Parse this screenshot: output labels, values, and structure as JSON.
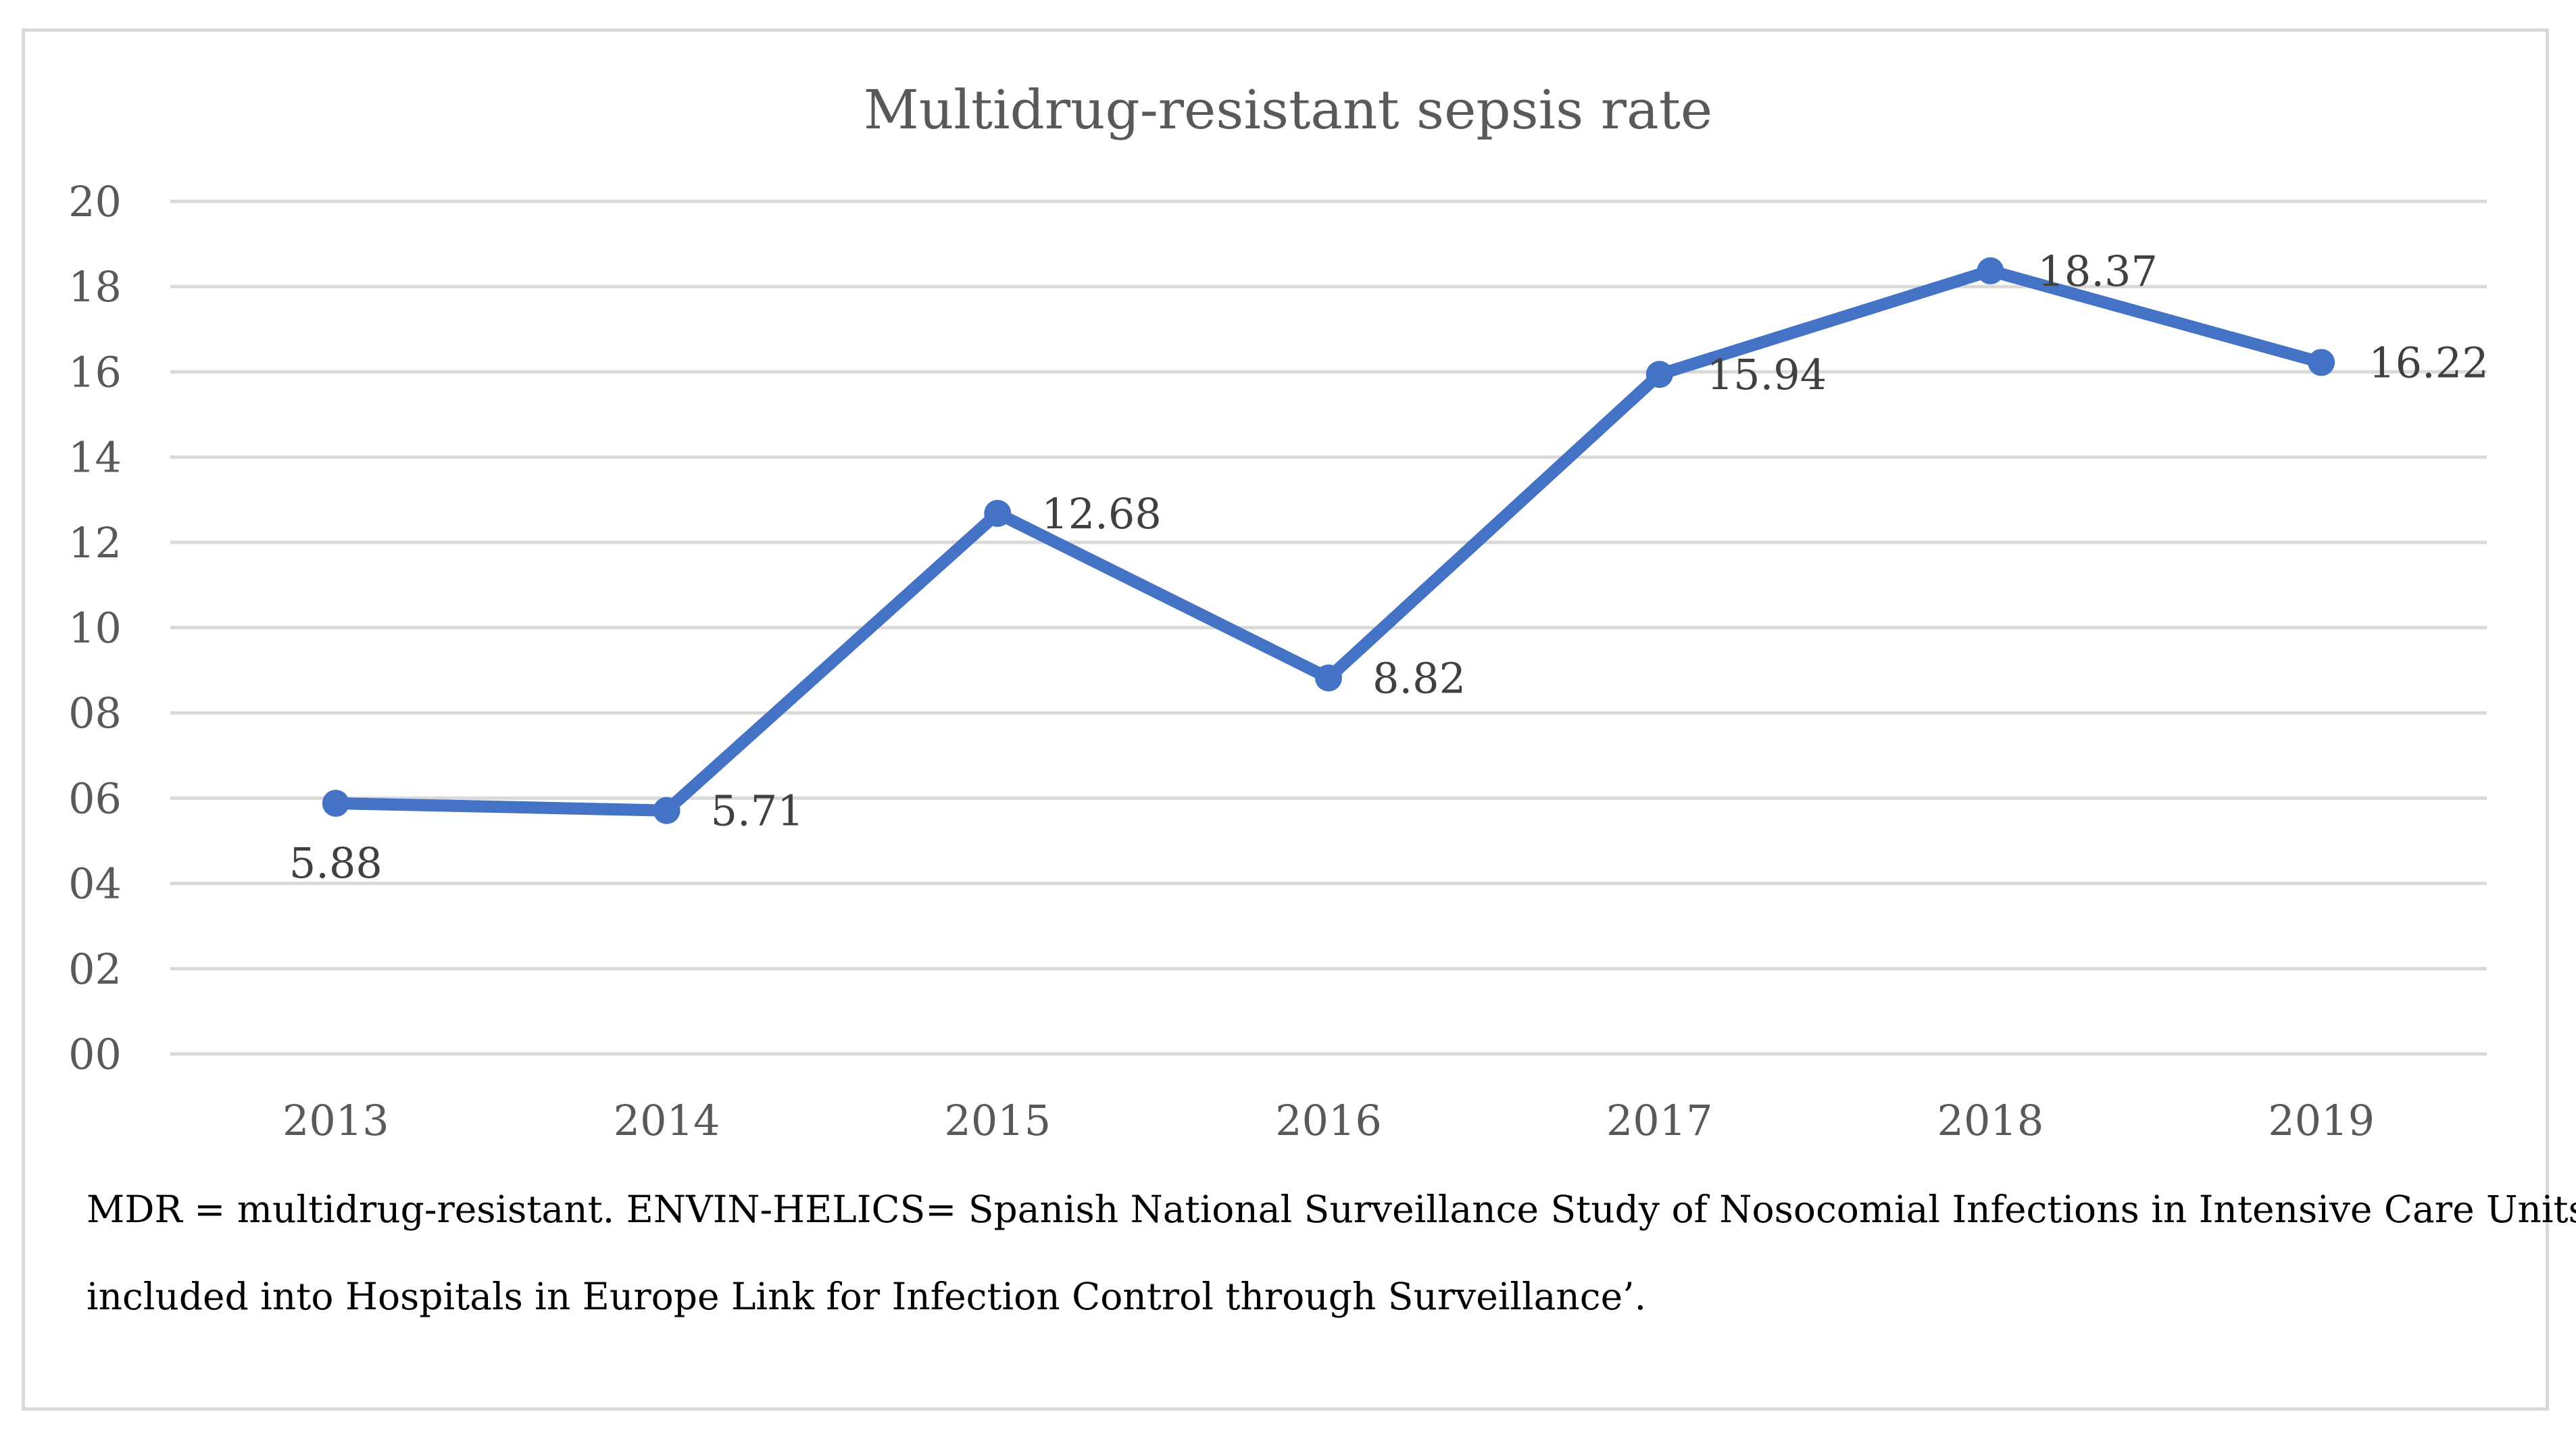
{
  "chart_data": {
    "type": "line",
    "title": "Multidrug-resistant sepsis rate",
    "categories": [
      "2013",
      "2014",
      "2015",
      "2016",
      "2017",
      "2018",
      "2019"
    ],
    "series": [
      {
        "name": "Multidrug-resistant sepsis rate",
        "values": [
          5.88,
          5.71,
          12.68,
          8.82,
          15.94,
          18.37,
          16.22
        ],
        "labels": [
          "5.88",
          "5.71",
          "12.68",
          "8.82",
          "15.94",
          "18.37",
          "16.22"
        ],
        "color": "#4472c4"
      }
    ],
    "ylim": [
      0,
      20
    ],
    "ytick_values": [
      0,
      2,
      4,
      6,
      8,
      10,
      12,
      14,
      16,
      18,
      20
    ],
    "ytick_labels": [
      "00",
      "02",
      "04",
      "06",
      "08",
      "10",
      "12",
      "14",
      "16",
      "18",
      "20"
    ],
    "xlabel": "",
    "ylabel": "",
    "grid": true,
    "legend": "none"
  },
  "caption": {
    "line1": "MDR = multidrug-resistant. ENVIN-HELICS= Spanish National Surveillance Study of Nosocomial Infections in Intensive Care Units",
    "line2": "included into Hospitals in Europe Link for Infection Control through Surveillance’."
  },
  "colors": {
    "line": "#4472c4",
    "grid": "#d9d9d9",
    "axis_text": "#595959",
    "label_text": "#404040"
  }
}
